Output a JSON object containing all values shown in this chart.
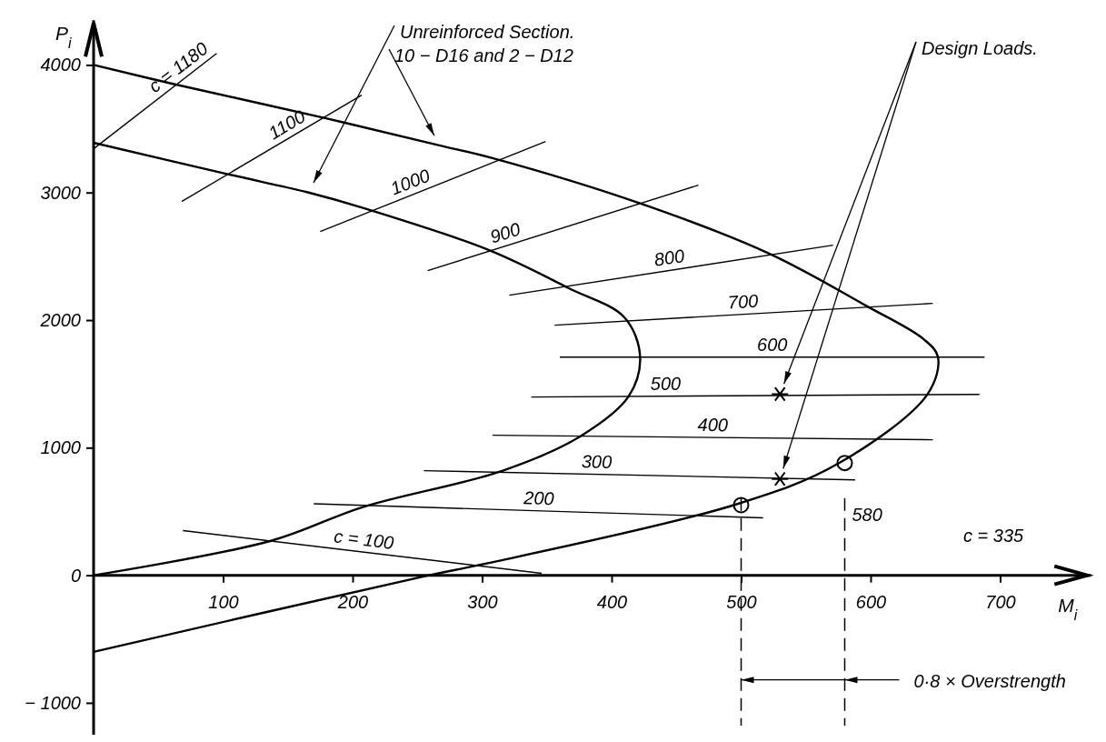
{
  "chart_data": {
    "type": "line",
    "xlabel": "M$_{i}$",
    "ylabel": "P$_{i}$",
    "xlim": [
      0,
      770
    ],
    "ylim": [
      -1250,
      4350
    ],
    "xticks": [
      100,
      200,
      300,
      400,
      500,
      600,
      700
    ],
    "yticks": [
      {
        "value": -1000,
        "label": "− 1000"
      },
      0,
      1000,
      2000,
      3000,
      4000
    ],
    "grid": false,
    "legend": false,
    "series": [
      {
        "name": "Unreinforced Section.",
        "color": "#000000",
        "marker": "none",
        "x": [
          0,
          137,
          208,
          316,
          376,
          413,
          422,
          410,
          367,
          305,
          208,
          166,
          103,
          0
        ],
        "values": [
          0,
          270,
          535,
          820,
          1090,
          1400,
          1710,
          2020,
          2250,
          2550,
          2880,
          3000,
          3145,
          3390
        ]
      },
      {
        "name": "10 − D16 and 2 − D12",
        "color": "#000000",
        "marker": "none",
        "x": [
          0,
          259,
          300,
          496,
          574,
          644,
          652,
          641,
          597,
          522,
          422,
          308,
          267,
          178,
          62,
          0
        ],
        "values": [
          -600,
          0,
          85,
          555,
          870,
          1420,
          1710,
          1850,
          2110,
          2520,
          2915,
          3270,
          3370,
          3585,
          3850,
          4000
        ]
      },
      {
        "name": "c = 1180",
        "color": "#000000",
        "marker": "none",
        "x": [
          0,
          95
        ],
        "values": [
          3343,
          4090
        ]
      },
      {
        "name": "1100",
        "color": "#000000",
        "marker": "none",
        "x": [
          68,
          207
        ],
        "values": [
          2930,
          3763
        ]
      },
      {
        "name": "1000",
        "color": "#000000",
        "marker": "none",
        "x": [
          175,
          349
        ],
        "values": [
          2694,
          3400
        ]
      },
      {
        "name": "900",
        "color": "#000000",
        "marker": "none",
        "x": [
          258,
          467
        ],
        "values": [
          2388,
          3058
        ]
      },
      {
        "name": "800",
        "color": "#000000",
        "marker": "none",
        "x": [
          321,
          571
        ],
        "values": [
          2195,
          2587
        ]
      },
      {
        "name": "700",
        "color": "#000000",
        "marker": "none",
        "x": [
          356,
          648
        ],
        "values": [
          1960,
          2131
        ]
      },
      {
        "name": "600",
        "color": "#000000",
        "marker": "none",
        "x": [
          360,
          688
        ],
        "values": [
          1710,
          1710
        ]
      },
      {
        "name": "500",
        "color": "#000000",
        "marker": "none",
        "x": [
          338,
          684
        ],
        "values": [
          1397,
          1418
        ]
      },
      {
        "name": "400",
        "color": "#000000",
        "marker": "none",
        "x": [
          308,
          648
        ],
        "values": [
          1098,
          1062
        ]
      },
      {
        "name": "300",
        "color": "#000000",
        "marker": "none",
        "x": [
          255,
          588
        ],
        "values": [
          820,
          748
        ]
      },
      {
        "name": "200",
        "color": "#000000",
        "marker": "none",
        "x": [
          170,
          517
        ],
        "values": [
          560,
          450
        ]
      },
      {
        "name": "c = 100",
        "color": "#000000",
        "marker": "none",
        "x": [
          69,
          346
        ],
        "values": [
          350,
          15
        ]
      },
      {
        "type": "scatter",
        "color": "#000000",
        "marker": "circle",
        "x": [
          500,
          580
        ],
        "values": [
          550,
          880
        ]
      },
      {
        "name": "Design Loads.",
        "type": "scatter",
        "color": "#000000",
        "marker": "cross",
        "x": [
          530,
          530
        ],
        "values": [
          1420,
          755
        ]
      }
    ],
    "ref_lines": [
      {
        "axis": "x",
        "value": 500,
        "label": null,
        "line_style": "dashed"
      },
      {
        "axis": "x",
        "value": 580,
        "label": "580",
        "line_style": "dashed"
      }
    ],
    "annotations": [
      "c = 335",
      {
        "text": "0·8 × Overstrength",
        "x": 500,
        "y": -820
      }
    ]
  }
}
